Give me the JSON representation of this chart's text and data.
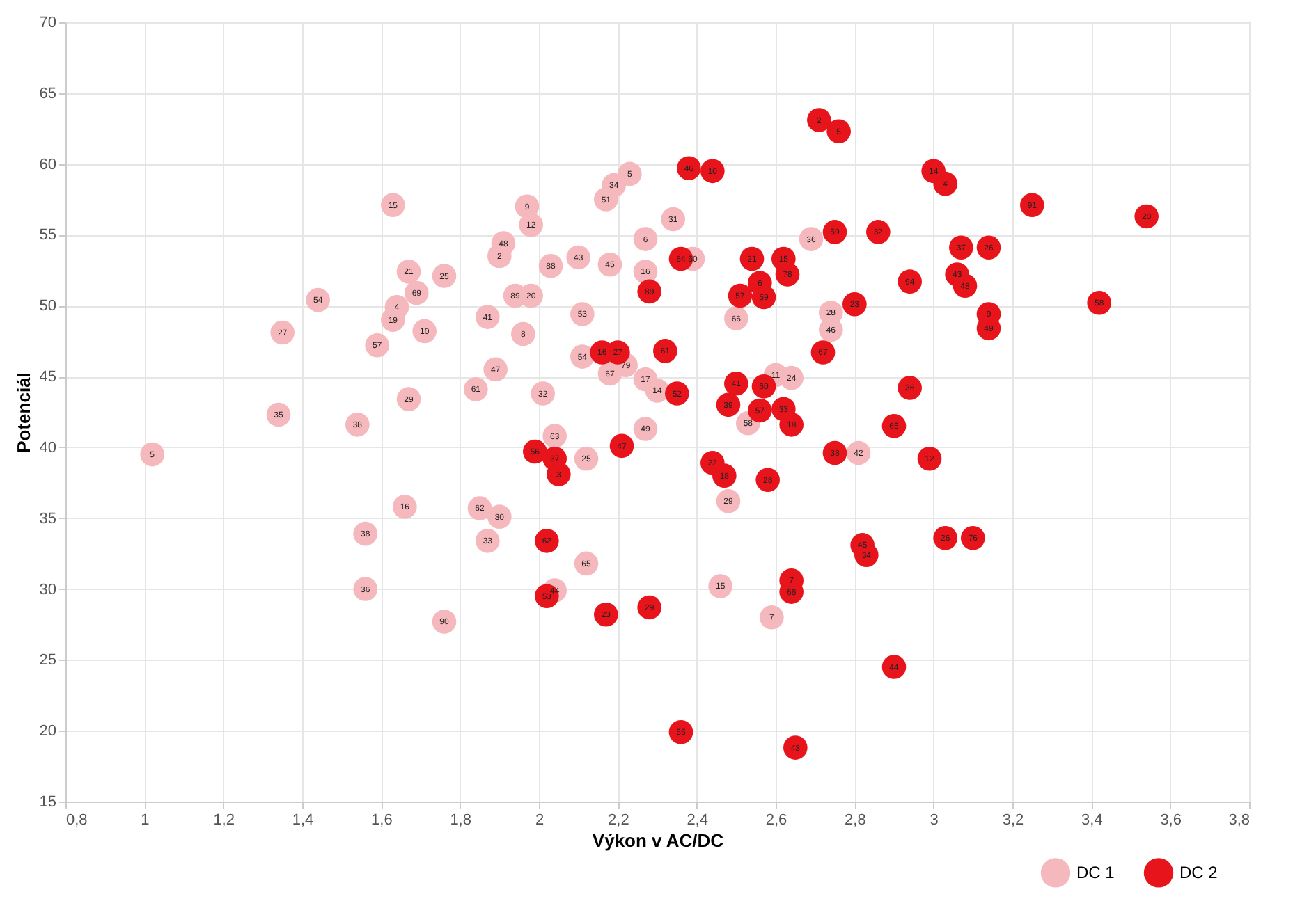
{
  "chart_data": {
    "type": "scatter",
    "xlabel": "Výkon v AC/DC",
    "ylabel": "Potenciál",
    "xlim": [
      0.8,
      3.8
    ],
    "ylim": [
      15,
      70
    ],
    "xticks": [
      {
        "value": 0.8,
        "label": "0,8"
      },
      {
        "value": 1,
        "label": "1"
      },
      {
        "value": 1.2,
        "label": "1,2"
      },
      {
        "value": 1.4,
        "label": "1,4"
      },
      {
        "value": 1.6,
        "label": "1,6"
      },
      {
        "value": 1.8,
        "label": "1,8"
      },
      {
        "value": 2,
        "label": "2"
      },
      {
        "value": 2.2,
        "label": "2,2"
      },
      {
        "value": 2.4,
        "label": "2,4"
      },
      {
        "value": 2.6,
        "label": "2,6"
      },
      {
        "value": 2.8,
        "label": "2,8"
      },
      {
        "value": 3,
        "label": "3"
      },
      {
        "value": 3.2,
        "label": "3,2"
      },
      {
        "value": 3.4,
        "label": "3,4"
      },
      {
        "value": 3.6,
        "label": "3,6"
      },
      {
        "value": 3.8,
        "label": "3,8"
      }
    ],
    "yticks": [
      15,
      20,
      25,
      30,
      35,
      40,
      45,
      50,
      55,
      60,
      65,
      70
    ],
    "grid": true,
    "legend": "bottom right",
    "marker": "circle",
    "series": [
      {
        "name": "DC 1",
        "color": "#f5b8bd",
        "x": [
          1.02,
          1.34,
          1.35,
          1.44,
          1.54,
          1.63,
          1.67,
          1.76,
          1.69,
          1.64,
          1.63,
          1.71,
          1.59,
          1.67,
          1.84,
          1.89,
          1.87,
          1.91,
          1.9,
          1.97,
          1.98,
          1.94,
          1.98,
          1.96,
          2.03,
          2.1,
          2.18,
          2.11,
          2.19,
          2.17,
          2.23,
          2.34,
          2.27,
          2.27,
          2.39,
          2.11,
          2.18,
          2.22,
          2.27,
          2.3,
          2.01,
          2.04,
          2.12,
          2.27,
          2.5,
          2.74,
          2.74,
          2.69,
          2.6,
          2.64,
          2.53,
          2.81,
          2.48,
          1.66,
          1.85,
          1.9,
          1.87,
          1.56,
          1.56,
          1.76,
          2.12,
          2.04,
          2.46,
          2.59
        ],
        "values": [
          39.5,
          42.3,
          48.1,
          50.4,
          41.6,
          57.1,
          52.4,
          52.1,
          50.9,
          49.9,
          49.0,
          48.2,
          47.2,
          43.4,
          44.1,
          45.5,
          49.2,
          54.4,
          53.5,
          57.0,
          55.7,
          50.7,
          50.7,
          48.0,
          52.8,
          53.4,
          52.9,
          49.4,
          58.5,
          57.5,
          59.3,
          56.1,
          54.7,
          52.4,
          53.3,
          46.4,
          45.2,
          45.8,
          44.8,
          44.0,
          43.8,
          40.8,
          39.2,
          41.3,
          49.1,
          49.5,
          48.3,
          54.7,
          45.1,
          44.9,
          41.7,
          39.6,
          36.2,
          35.8,
          35.7,
          35.1,
          33.4,
          33.9,
          30.0,
          27.7,
          31.8,
          29.9,
          30.2,
          28.0
        ]
      },
      {
        "name": "DC 2",
        "color": "#e8141c",
        "x": [
          2.38,
          2.44,
          2.71,
          2.76,
          3.0,
          3.03,
          3.25,
          3.54,
          2.75,
          2.86,
          3.07,
          3.14,
          3.06,
          3.08,
          2.94,
          2.8,
          3.42,
          3.14,
          3.14,
          2.54,
          2.62,
          2.63,
          2.56,
          2.51,
          2.57,
          2.36,
          2.28,
          2.32,
          2.16,
          2.2,
          2.72,
          2.35,
          2.5,
          2.57,
          2.48,
          2.56,
          2.62,
          2.64,
          2.94,
          2.9,
          2.75,
          2.99,
          1.99,
          2.04,
          2.05,
          2.21,
          2.44,
          2.47,
          2.58,
          3.03,
          3.1,
          2.82,
          2.83,
          2.02,
          2.02,
          2.17,
          2.28,
          2.64,
          2.64,
          2.9,
          2.36,
          2.65
        ],
        "values": [
          59.7,
          59.5,
          63.1,
          62.3,
          59.5,
          58.6,
          57.1,
          56.3,
          55.2,
          55.2,
          54.1,
          54.1,
          52.2,
          51.4,
          51.7,
          50.1,
          50.2,
          49.4,
          48.4,
          53.3,
          53.3,
          52.2,
          51.6,
          50.7,
          50.6,
          53.3,
          51.0,
          46.8,
          46.7,
          46.7,
          46.7,
          43.8,
          44.5,
          44.3,
          43.0,
          42.6,
          42.7,
          41.6,
          44.2,
          41.5,
          39.6,
          39.2,
          39.7,
          39.2,
          38.1,
          40.1,
          38.9,
          38.0,
          37.7,
          33.6,
          33.6,
          33.1,
          32.4,
          33.4,
          29.5,
          28.2,
          28.7,
          30.6,
          29.8,
          24.5,
          19.9,
          18.8
        ]
      }
    ],
    "annotations": [
      {
        "text": "5",
        "x": 1.02,
        "y": 39.5
      },
      {
        "text": "35",
        "x": 1.34,
        "y": 42.3
      },
      {
        "text": "27",
        "x": 1.35,
        "y": 48.1
      },
      {
        "text": "54",
        "x": 1.44,
        "y": 50.4
      },
      {
        "text": "38",
        "x": 1.54,
        "y": 41.6
      },
      {
        "text": "15",
        "x": 1.63,
        "y": 57.1
      },
      {
        "text": "21",
        "x": 1.67,
        "y": 52.4
      },
      {
        "text": "25",
        "x": 1.76,
        "y": 52.1
      },
      {
        "text": "69",
        "x": 1.69,
        "y": 50.9
      },
      {
        "text": "4",
        "x": 1.64,
        "y": 49.9
      },
      {
        "text": "19",
        "x": 1.63,
        "y": 49.0
      },
      {
        "text": "10",
        "x": 1.71,
        "y": 48.2
      },
      {
        "text": "57",
        "x": 1.59,
        "y": 47.2
      },
      {
        "text": "29",
        "x": 1.67,
        "y": 43.4
      },
      {
        "text": "61",
        "x": 1.84,
        "y": 44.1
      },
      {
        "text": "47",
        "x": 1.89,
        "y": 45.5
      },
      {
        "text": "41",
        "x": 1.87,
        "y": 49.2
      },
      {
        "text": "48",
        "x": 1.91,
        "y": 54.4
      },
      {
        "text": "2",
        "x": 1.9,
        "y": 53.5
      },
      {
        "text": "9",
        "x": 1.97,
        "y": 57.0
      },
      {
        "text": "12",
        "x": 1.98,
        "y": 55.7
      },
      {
        "text": "89",
        "x": 1.94,
        "y": 50.7
      },
      {
        "text": "20",
        "x": 1.98,
        "y": 50.7
      },
      {
        "text": "8",
        "x": 1.96,
        "y": 48.0
      },
      {
        "text": "88",
        "x": 2.03,
        "y": 52.8
      },
      {
        "text": "43",
        "x": 2.1,
        "y": 53.4
      },
      {
        "text": "45",
        "x": 2.18,
        "y": 52.9
      },
      {
        "text": "53",
        "x": 2.11,
        "y": 49.4
      },
      {
        "text": "34",
        "x": 2.19,
        "y": 58.5
      },
      {
        "text": "51",
        "x": 2.17,
        "y": 57.5
      },
      {
        "text": "5",
        "x": 2.23,
        "y": 59.3
      },
      {
        "text": "31",
        "x": 2.34,
        "y": 56.1
      },
      {
        "text": "6",
        "x": 2.27,
        "y": 54.7
      },
      {
        "text": "16",
        "x": 2.27,
        "y": 52.4
      },
      {
        "text": "50",
        "x": 2.39,
        "y": 53.3
      },
      {
        "text": "54",
        "x": 2.11,
        "y": 46.4
      },
      {
        "text": "67",
        "x": 2.18,
        "y": 45.2
      },
      {
        "text": "79",
        "x": 2.22,
        "y": 45.8
      },
      {
        "text": "17",
        "x": 2.27,
        "y": 44.8
      },
      {
        "text": "14",
        "x": 2.3,
        "y": 44.0
      },
      {
        "text": "32",
        "x": 2.01,
        "y": 43.8
      },
      {
        "text": "63",
        "x": 2.04,
        "y": 40.8
      },
      {
        "text": "25",
        "x": 2.12,
        "y": 39.2
      },
      {
        "text": "49",
        "x": 2.27,
        "y": 41.3
      },
      {
        "text": "66",
        "x": 2.5,
        "y": 49.1
      },
      {
        "text": "28",
        "x": 2.74,
        "y": 49.5
      },
      {
        "text": "46",
        "x": 2.74,
        "y": 48.3
      },
      {
        "text": "36",
        "x": 2.69,
        "y": 54.7
      },
      {
        "text": "11",
        "x": 2.6,
        "y": 45.1
      },
      {
        "text": "24",
        "x": 2.64,
        "y": 44.9
      },
      {
        "text": "58",
        "x": 2.53,
        "y": 41.7
      },
      {
        "text": "42",
        "x": 2.81,
        "y": 39.6
      },
      {
        "text": "29",
        "x": 2.48,
        "y": 36.2
      },
      {
        "text": "16",
        "x": 1.66,
        "y": 35.8
      },
      {
        "text": "62",
        "x": 1.85,
        "y": 35.7
      },
      {
        "text": "30",
        "x": 1.9,
        "y": 35.1
      },
      {
        "text": "33",
        "x": 1.87,
        "y": 33.4
      },
      {
        "text": "38",
        "x": 1.56,
        "y": 33.9
      },
      {
        "text": "36",
        "x": 1.56,
        "y": 30.0
      },
      {
        "text": "90",
        "x": 1.76,
        "y": 27.7
      },
      {
        "text": "65",
        "x": 2.12,
        "y": 31.8
      },
      {
        "text": "44",
        "x": 2.04,
        "y": 29.9
      },
      {
        "text": "15",
        "x": 2.46,
        "y": 30.2
      },
      {
        "text": "7",
        "x": 2.59,
        "y": 28.0
      },
      {
        "text": "46",
        "x": 2.38,
        "y": 59.7
      },
      {
        "text": "10",
        "x": 2.44,
        "y": 59.5
      },
      {
        "text": "2",
        "x": 2.71,
        "y": 63.1
      },
      {
        "text": "5",
        "x": 2.76,
        "y": 62.3
      },
      {
        "text": "14",
        "x": 3.0,
        "y": 59.5
      },
      {
        "text": "4",
        "x": 3.03,
        "y": 58.6
      },
      {
        "text": "91",
        "x": 3.25,
        "y": 57.1
      },
      {
        "text": "20",
        "x": 3.54,
        "y": 56.3
      },
      {
        "text": "59",
        "x": 2.75,
        "y": 55.2
      },
      {
        "text": "32",
        "x": 2.86,
        "y": 55.2
      },
      {
        "text": "37",
        "x": 3.07,
        "y": 54.1
      },
      {
        "text": "26",
        "x": 3.14,
        "y": 54.1
      },
      {
        "text": "43",
        "x": 3.06,
        "y": 52.2
      },
      {
        "text": "48",
        "x": 3.08,
        "y": 51.4
      },
      {
        "text": "94",
        "x": 2.94,
        "y": 51.7
      },
      {
        "text": "23",
        "x": 2.8,
        "y": 50.1
      },
      {
        "text": "58",
        "x": 3.42,
        "y": 50.2
      },
      {
        "text": "9",
        "x": 3.14,
        "y": 49.4
      },
      {
        "text": "49",
        "x": 3.14,
        "y": 48.4
      },
      {
        "text": "21",
        "x": 2.54,
        "y": 53.3
      },
      {
        "text": "15",
        "x": 2.62,
        "y": 53.3
      },
      {
        "text": "78",
        "x": 2.63,
        "y": 52.2
      },
      {
        "text": "6",
        "x": 2.56,
        "y": 51.6
      },
      {
        "text": "57",
        "x": 2.51,
        "y": 50.7
      },
      {
        "text": "59",
        "x": 2.57,
        "y": 50.6
      },
      {
        "text": "64",
        "x": 2.36,
        "y": 53.3
      },
      {
        "text": "89",
        "x": 2.28,
        "y": 51.0
      },
      {
        "text": "61",
        "x": 2.32,
        "y": 46.8
      },
      {
        "text": "16",
        "x": 2.16,
        "y": 46.7
      },
      {
        "text": "27",
        "x": 2.2,
        "y": 46.7
      },
      {
        "text": "67",
        "x": 2.72,
        "y": 46.7
      },
      {
        "text": "52",
        "x": 2.35,
        "y": 43.8
      },
      {
        "text": "41",
        "x": 2.5,
        "y": 44.5
      },
      {
        "text": "60",
        "x": 2.57,
        "y": 44.3
      },
      {
        "text": "39",
        "x": 2.48,
        "y": 43.0
      },
      {
        "text": "57",
        "x": 2.56,
        "y": 42.6
      },
      {
        "text": "33",
        "x": 2.62,
        "y": 42.7
      },
      {
        "text": "18",
        "x": 2.64,
        "y": 41.6
      },
      {
        "text": "36",
        "x": 2.94,
        "y": 44.2
      },
      {
        "text": "65",
        "x": 2.9,
        "y": 41.5
      },
      {
        "text": "38",
        "x": 2.75,
        "y": 39.6
      },
      {
        "text": "12",
        "x": 2.99,
        "y": 39.2
      },
      {
        "text": "56",
        "x": 1.99,
        "y": 39.7
      },
      {
        "text": "37",
        "x": 2.04,
        "y": 39.2
      },
      {
        "text": "3",
        "x": 2.05,
        "y": 38.1
      },
      {
        "text": "47",
        "x": 2.21,
        "y": 40.1
      },
      {
        "text": "22",
        "x": 2.44,
        "y": 38.9
      },
      {
        "text": "18",
        "x": 2.47,
        "y": 38.0
      },
      {
        "text": "28",
        "x": 2.58,
        "y": 37.7
      },
      {
        "text": "26",
        "x": 3.03,
        "y": 33.6
      },
      {
        "text": "76",
        "x": 3.1,
        "y": 33.6
      },
      {
        "text": "45",
        "x": 2.82,
        "y": 33.1
      },
      {
        "text": "34",
        "x": 2.83,
        "y": 32.4
      },
      {
        "text": "62",
        "x": 2.02,
        "y": 33.4
      },
      {
        "text": "53",
        "x": 2.02,
        "y": 29.5
      },
      {
        "text": "23",
        "x": 2.17,
        "y": 28.2
      },
      {
        "text": "29",
        "x": 2.28,
        "y": 28.7
      },
      {
        "text": "7",
        "x": 2.64,
        "y": 30.6
      },
      {
        "text": "68",
        "x": 2.64,
        "y": 29.8
      },
      {
        "text": "44",
        "x": 2.9,
        "y": 24.5
      },
      {
        "text": "55",
        "x": 2.36,
        "y": 19.9
      },
      {
        "text": "43",
        "x": 2.65,
        "y": 18.8
      }
    ]
  }
}
